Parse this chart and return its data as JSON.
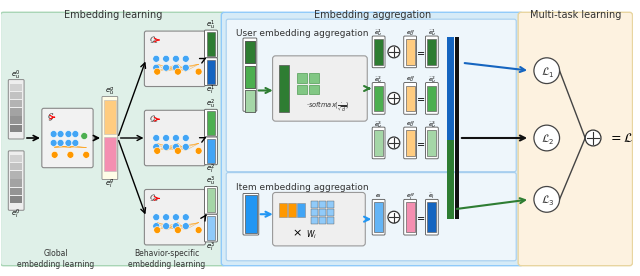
{
  "bg_left_color": "#dff0e8",
  "bg_mid_color": "#d6ebf7",
  "bg_right_color": "#fdf2e0",
  "title_embedding_learning": "Embedding learning",
  "title_embedding_aggregation": "Embedding aggregation",
  "title_multi_task": "Multi-task learning",
  "title_global": "Global\nembedding learning",
  "title_behavior": "Behavior-specific\nembedding learning",
  "title_user_agg": "User embedding aggregation",
  "title_item_agg": "Item embedding aggregation",
  "green_dark": "#2e7d32",
  "green_med": "#4caf50",
  "green_light1": "#81c784",
  "green_light2": "#a5d6a7",
  "green_light3": "#c8e6c9",
  "blue_dark": "#1a5276",
  "blue_med": "#2196f3",
  "blue_light1": "#64b5f6",
  "blue_light2": "#bbdefb",
  "orange_light": "#ffcc80",
  "pink_light": "#f48fb1",
  "gray_dark": "#555555",
  "gray_med": "#888888",
  "gray_light": "#cccccc"
}
